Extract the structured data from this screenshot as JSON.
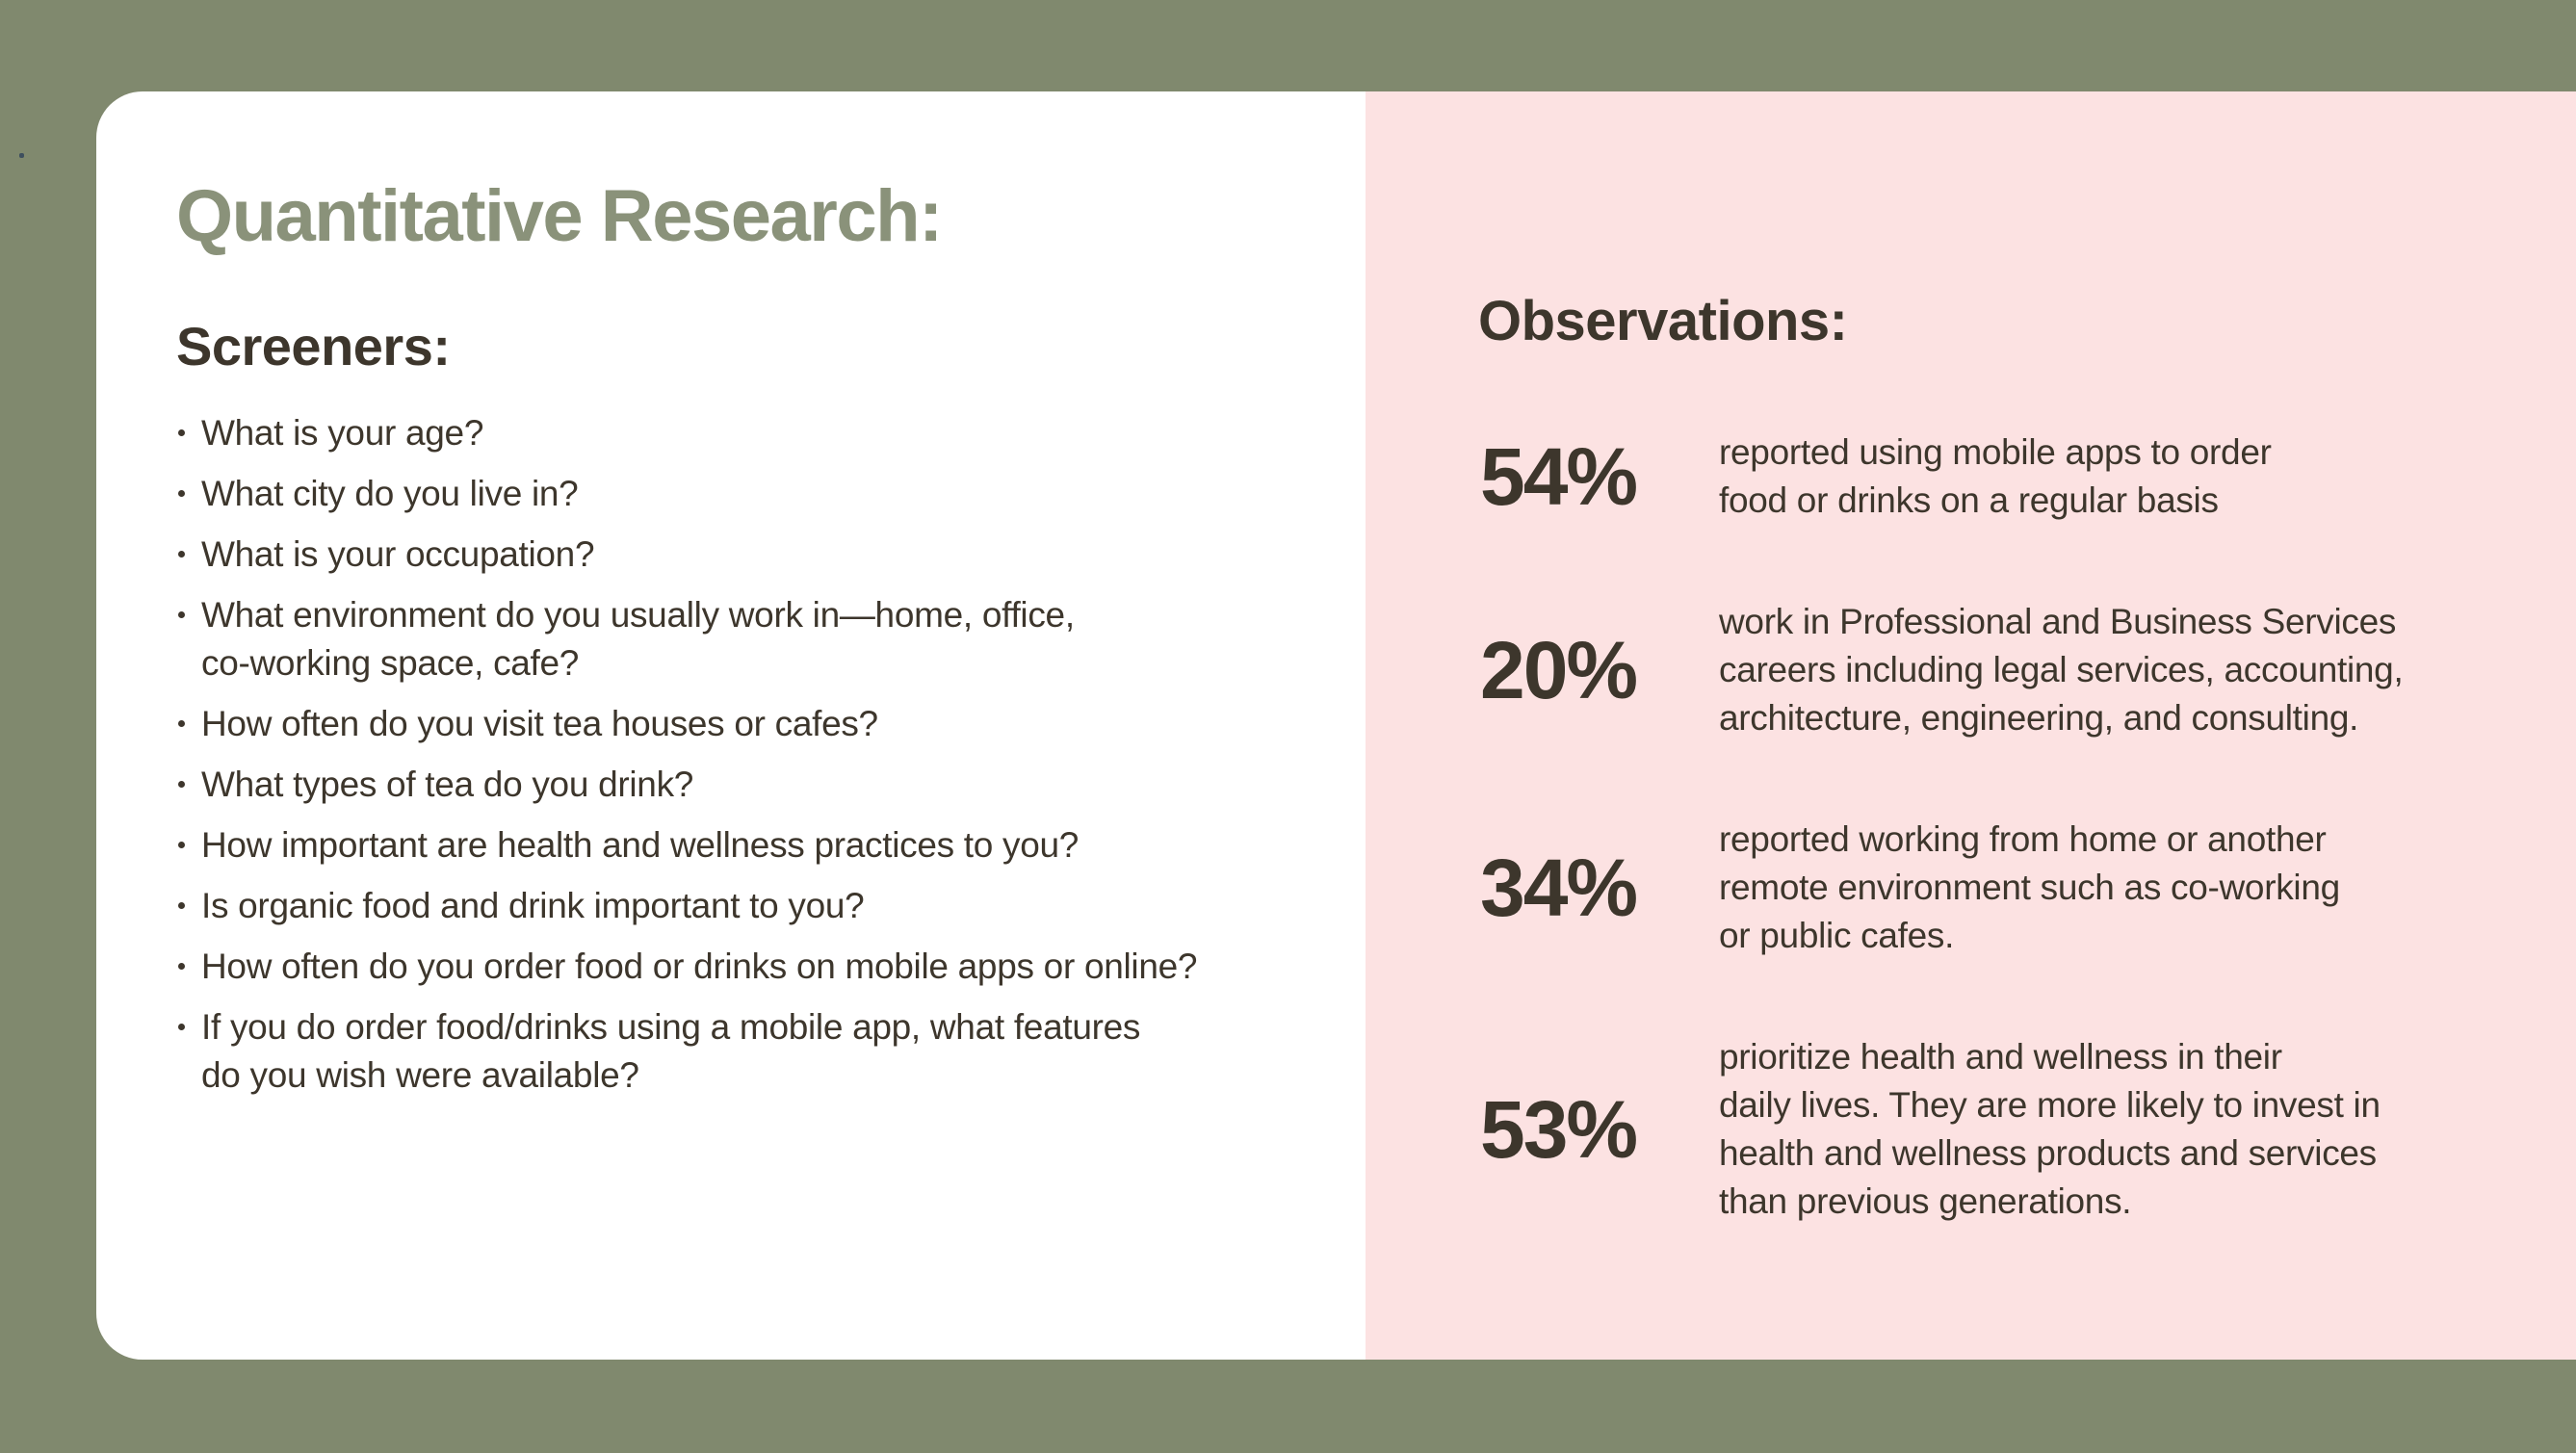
{
  "colors": {
    "background_olive": "#80896e",
    "card_white": "#ffffff",
    "panel_pink": "#fce2e2",
    "title_sage": "#8a927a",
    "text_dark": "#3d362c"
  },
  "slide": {
    "title": "Quantitative Research:",
    "left": {
      "heading": "Screeners:",
      "bullets": [
        "What is your age?",
        "What city do you live in?",
        "What is your occupation?",
        "What environment do you usually work in—home, office,\nco-working space, cafe?",
        "How often do you visit tea houses or cafes?",
        "What types of tea do you drink?",
        "How important are health and wellness practices to you?",
        "Is organic food and drink important to you?",
        "How often do you order food or drinks on mobile apps or online?",
        "If you do order food/drinks using a mobile app, what features\ndo you wish were available?"
      ]
    },
    "right": {
      "heading": "Observations:",
      "stats": [
        {
          "value": "54%",
          "text": "reported using mobile apps to order\nfood or drinks on a regular basis"
        },
        {
          "value": "20%",
          "text": "work in Professional and Business Services\ncareers including legal services, accounting,\narchitecture, engineering, and consulting."
        },
        {
          "value": "34%",
          "text": "reported working from home or another\nremote environment such as co-working\nor public cafes."
        },
        {
          "value": "53%",
          "text": "prioritize health and wellness in their\ndaily lives. They are more likely to invest in\nhealth and wellness products and services\nthan previous generations."
        }
      ]
    }
  }
}
